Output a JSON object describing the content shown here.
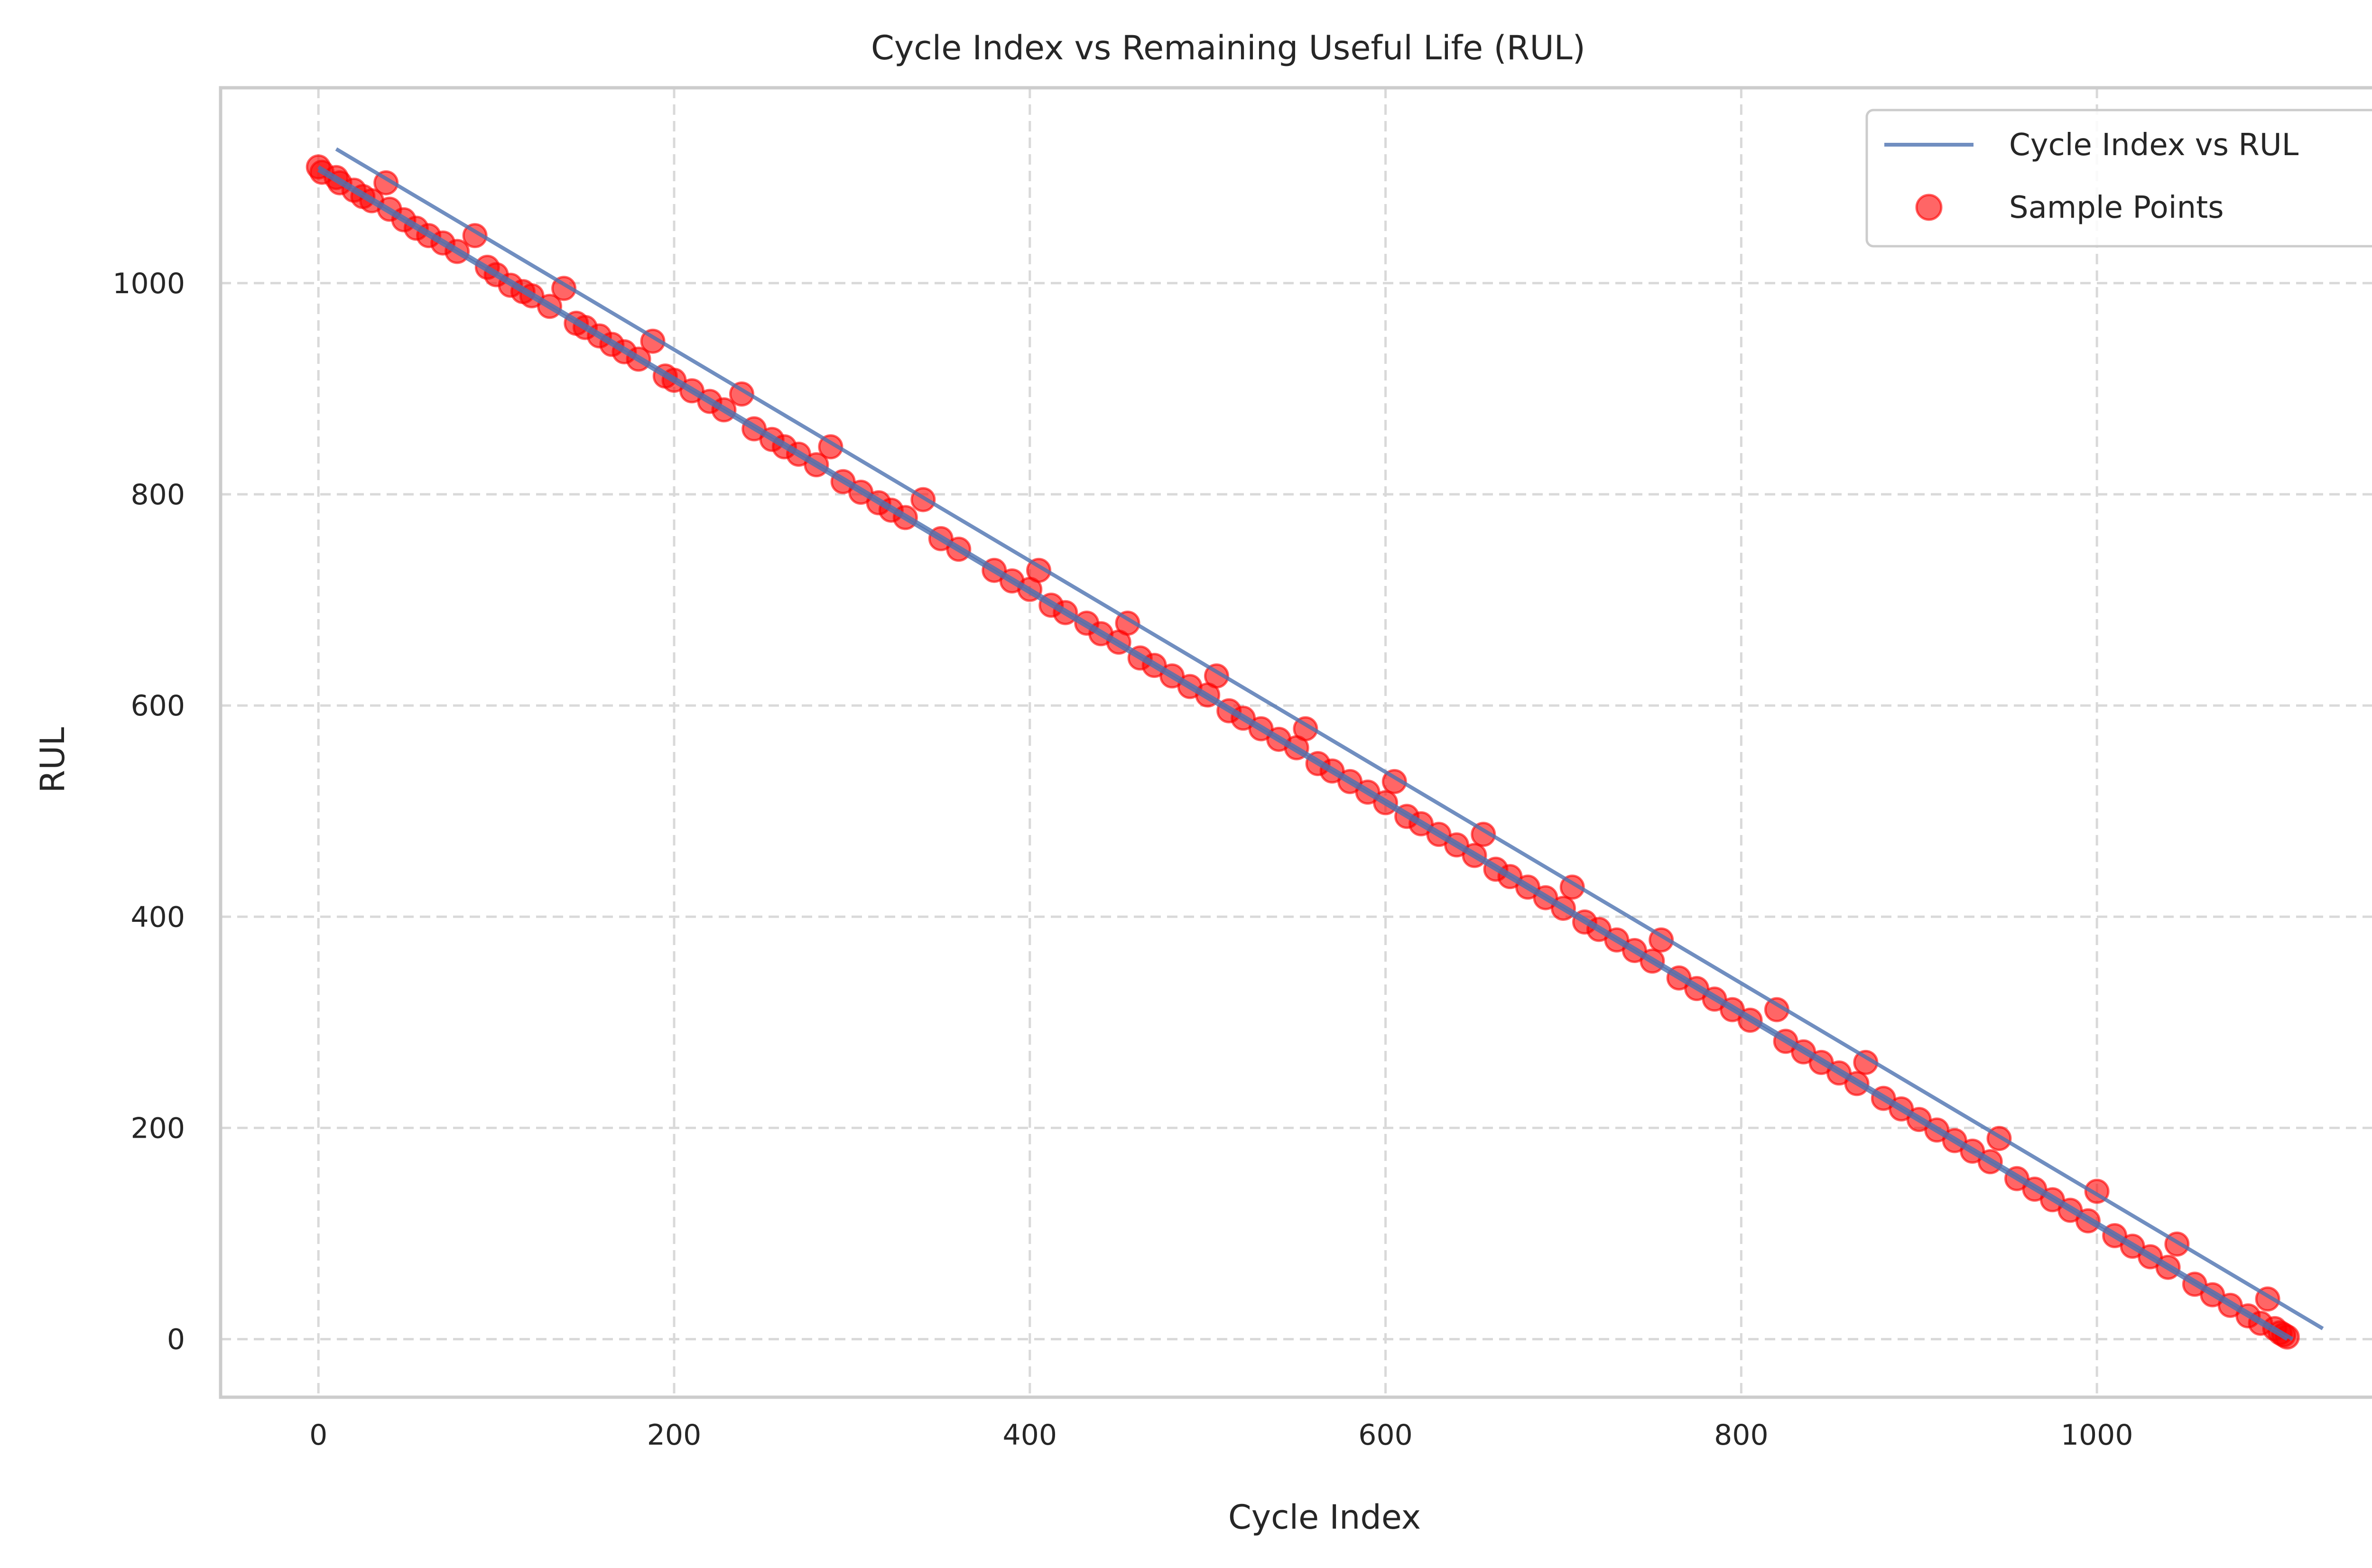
{
  "chart_data": {
    "type": "scatter",
    "title": "Cycle Index vs Remaining Useful Life (RUL)",
    "xlabel": "Cycle Index",
    "ylabel": "RUL",
    "xlim": [
      -55,
      1160
    ],
    "ylim": [
      -55,
      1185
    ],
    "xticks": [
      0,
      200,
      400,
      600,
      800,
      1000
    ],
    "yticks": [
      0,
      200,
      400,
      600,
      800,
      1000
    ],
    "xtick_labels": [
      "0",
      "200",
      "400",
      "600",
      "800",
      "1000"
    ],
    "ytick_labels": [
      "0",
      "200",
      "400",
      "600",
      "800",
      "1000"
    ],
    "grid": true,
    "legend_position": "top-right",
    "legend": [
      "Cycle Index vs RUL",
      "Sample Points"
    ],
    "series": [
      {
        "name": "Cycle Index vs RUL",
        "kind": "line",
        "color": "#4c72b0",
        "segments": [
          {
            "x": [
              0,
              1107
            ],
            "y": [
              1107,
              0
            ]
          },
          {
            "x": [
              10,
              1127
            ],
            "y": [
              1127,
              10
            ]
          },
          {
            "x": [
              0,
              1110
            ],
            "y": [
              1110,
              0
            ]
          }
        ]
      },
      {
        "name": "Sample Points",
        "kind": "scatter",
        "color": "#ff0000",
        "x": [
          0,
          2,
          10,
          12,
          20,
          25,
          30,
          38,
          40,
          48,
          55,
          62,
          70,
          78,
          88,
          95,
          100,
          108,
          115,
          120,
          130,
          138,
          145,
          150,
          158,
          165,
          172,
          180,
          188,
          195,
          200,
          210,
          220,
          228,
          238,
          245,
          255,
          262,
          270,
          280,
          288,
          295,
          305,
          315,
          322,
          330,
          340,
          350,
          360,
          380,
          390,
          400,
          405,
          412,
          420,
          432,
          440,
          450,
          455,
          462,
          470,
          480,
          490,
          500,
          505,
          512,
          520,
          530,
          540,
          550,
          555,
          562,
          570,
          580,
          590,
          600,
          605,
          612,
          620,
          630,
          640,
          650,
          655,
          662,
          670,
          680,
          690,
          700,
          705,
          712,
          720,
          730,
          740,
          750,
          755,
          765,
          775,
          785,
          795,
          805,
          820,
          825,
          835,
          845,
          855,
          865,
          870,
          880,
          890,
          900,
          910,
          920,
          930,
          940,
          945,
          955,
          965,
          975,
          985,
          995,
          1000,
          1010,
          1020,
          1030,
          1040,
          1045,
          1055,
          1065,
          1075,
          1085,
          1092,
          1096,
          1100,
          1103,
          1105,
          1107
        ],
        "y": [
          1110,
          1105,
          1100,
          1095,
          1088,
          1082,
          1078,
          1095,
          1070,
          1060,
          1052,
          1045,
          1038,
          1030,
          1045,
          1015,
          1008,
          998,
          992,
          988,
          978,
          995,
          962,
          958,
          950,
          942,
          935,
          928,
          945,
          912,
          908,
          898,
          888,
          880,
          895,
          862,
          852,
          845,
          838,
          828,
          845,
          812,
          802,
          792,
          785,
          778,
          795,
          758,
          748,
          728,
          718,
          710,
          728,
          695,
          688,
          678,
          668,
          660,
          678,
          645,
          638,
          628,
          618,
          610,
          628,
          595,
          588,
          578,
          568,
          560,
          578,
          545,
          538,
          528,
          518,
          508,
          528,
          495,
          488,
          478,
          468,
          458,
          478,
          445,
          438,
          428,
          418,
          408,
          428,
          395,
          388,
          378,
          368,
          358,
          378,
          342,
          332,
          322,
          312,
          302,
          312,
          282,
          272,
          262,
          252,
          242,
          262,
          228,
          218,
          208,
          198,
          188,
          178,
          168,
          190,
          152,
          142,
          132,
          122,
          112,
          140,
          98,
          88,
          78,
          68,
          90,
          52,
          42,
          32,
          22,
          15,
          38,
          10,
          6,
          4,
          2
        ]
      }
    ]
  }
}
